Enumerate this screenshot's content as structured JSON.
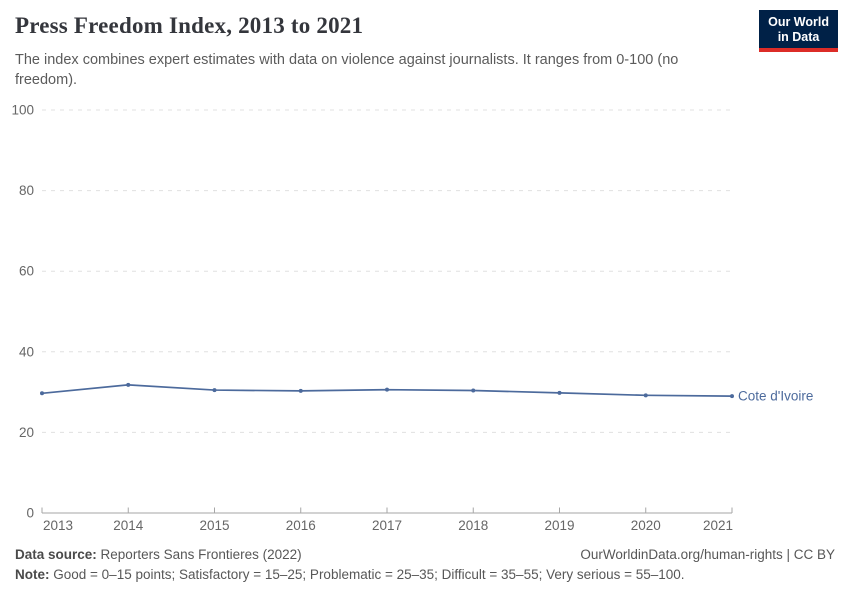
{
  "header": {
    "title": "Press Freedom Index, 2013 to 2021",
    "subtitle": "The index combines expert estimates with data on violence against journalists. It ranges from 0-100 (no freedom).",
    "logo": {
      "line1": "Our World",
      "line2": "in Data"
    }
  },
  "chart_data": {
    "type": "line",
    "title": "Press Freedom Index, 2013 to 2021",
    "x": [
      2013,
      2014,
      2015,
      2016,
      2017,
      2018,
      2019,
      2020,
      2021
    ],
    "series": [
      {
        "name": "Cote d'Ivoire",
        "color": "#4C6A9C",
        "values": [
          29.7,
          31.8,
          30.5,
          30.3,
          30.6,
          30.4,
          29.8,
          29.2,
          29.0
        ]
      }
    ],
    "ylim": [
      0,
      100
    ],
    "yticks": [
      0,
      20,
      40,
      60,
      80,
      100
    ],
    "xlabel": "",
    "ylabel": "",
    "grid": true,
    "legend": "end-of-line-label"
  },
  "footer": {
    "datasource_label": "Data source:",
    "datasource_value": "Reporters Sans Frontieres (2022)",
    "attribution": "OurWorldinData.org/human-rights | CC BY",
    "note_label": "Note:",
    "note_value": "Good = 0–15 points; Satisfactory = 15–25; Problematic = 25–35; Difficult = 35–55; Very serious = 55–100."
  },
  "colors": {
    "logo_navy": "#002147",
    "logo_red": "#dc2c27",
    "grid": "#e0e0e0",
    "axis": "#a6a6a6",
    "tick_label": "#666666"
  }
}
